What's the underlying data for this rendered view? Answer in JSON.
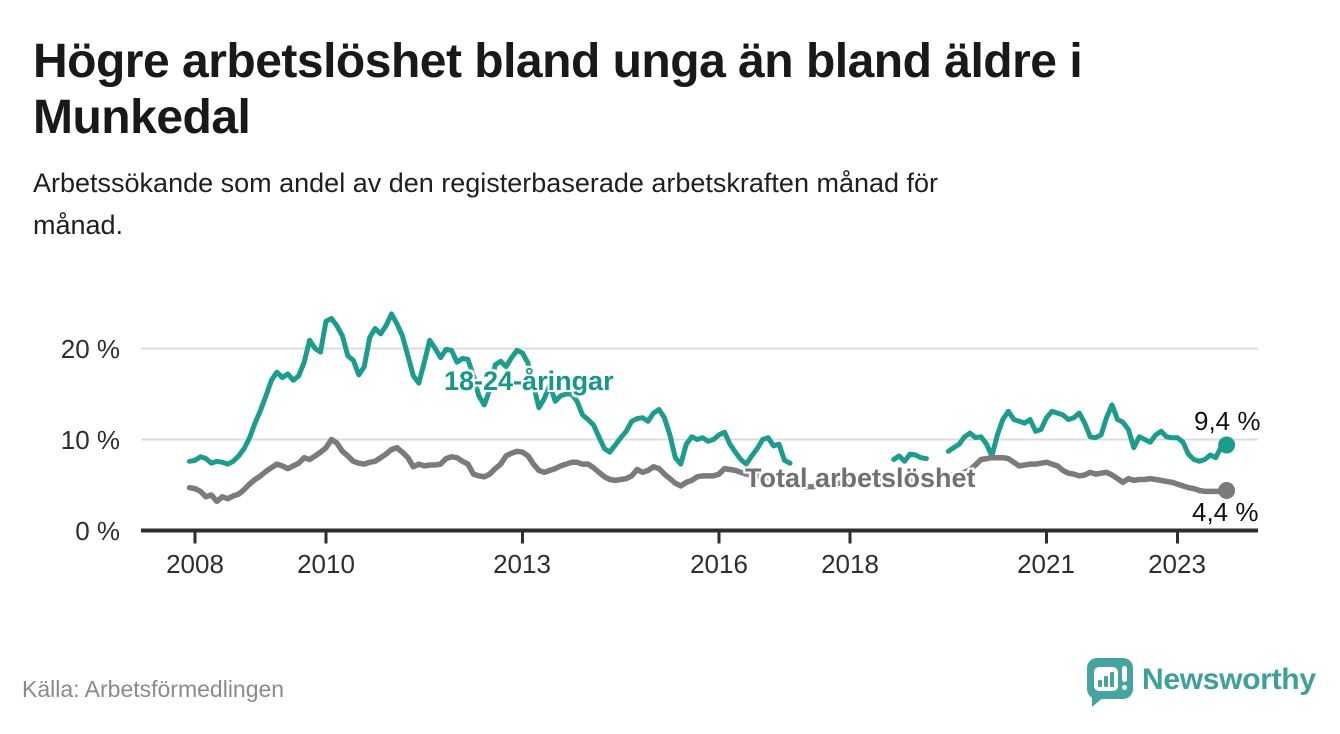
{
  "brand": {
    "name": "Newsworthy"
  },
  "source": "Källa: Arbetsförmedlingen",
  "colors": {
    "accent_teal": "#1b9c8c",
    "line_gray": "#7b7b7b",
    "brand_teal": "#46a49e",
    "axis": "#2e2e2e",
    "grid": "#dcdcdc",
    "title_text": "#191919"
  },
  "chart_data": {
    "type": "line",
    "title": "Högre arbetslöshet bland unga än bland äldre i Munkedal",
    "subtitle": "Arbetssökande som andel av den registerbaserade arbetskraften månad för månad.",
    "unit": "%",
    "frequency": "monthly",
    "start": "2007-12",
    "end": "2023-10",
    "grid": "horizontal",
    "legend": "inline-labels",
    "ylim": [
      0,
      25.5
    ],
    "x_ticks": [
      2008,
      2010,
      2013,
      2016,
      2018,
      2021,
      2023
    ],
    "x_tick_labels": [
      "2008",
      "2010",
      "2013",
      "2016",
      "2018",
      "2021",
      "2023"
    ],
    "y_ticks": [
      20,
      10,
      0
    ],
    "y_tick_labels": [
      "20 %",
      "10 %",
      "0 %"
    ],
    "series": [
      {
        "name": "18-24-åringar",
        "color": "#1b9c8c",
        "end_label": "9,4 %",
        "end_value": 9.4,
        "values": [
          7.6,
          7.7,
          8.1,
          7.9,
          7.4,
          7.6,
          7.5,
          7.3,
          7.6,
          8.2,
          9.0,
          10.2,
          11.8,
          13.2,
          14.8,
          16.5,
          17.4,
          16.8,
          17.2,
          16.5,
          17.0,
          18.5,
          20.9,
          20.0,
          19.6,
          23.0,
          23.3,
          22.5,
          21.4,
          19.2,
          18.7,
          17.1,
          18.0,
          21.2,
          22.2,
          21.6,
          22.5,
          23.8,
          22.7,
          21.4,
          19.2,
          17.0,
          16.2,
          18.5,
          20.9,
          20.0,
          19.0,
          19.9,
          19.8,
          18.5,
          18.9,
          18.8,
          17.0,
          14.8,
          13.8,
          15.5,
          18.2,
          18.6,
          18.0,
          19.0,
          19.8,
          19.5,
          18.4,
          16.0,
          13.5,
          14.5,
          16.0,
          14.2,
          14.8,
          15.0,
          15.0,
          14.2,
          12.7,
          12.2,
          11.6,
          10.3,
          9.0,
          8.6,
          9.4,
          10.2,
          10.9,
          12.0,
          12.3,
          12.4,
          12.0,
          12.9,
          13.3,
          12.4,
          10.5,
          8.0,
          7.3,
          9.5,
          10.3,
          10.0,
          10.2,
          9.8,
          10.0,
          10.5,
          10.8,
          9.5,
          8.6,
          7.8,
          7.3,
          8.2,
          9.0,
          10.0,
          10.2,
          9.3,
          9.5,
          7.7,
          7.4,
          null,
          null,
          null,
          null,
          null,
          null,
          null,
          null,
          null,
          null,
          null,
          null,
          null,
          null,
          null,
          null,
          null,
          null,
          7.8,
          8.2,
          7.6,
          8.4,
          8.3,
          8.0,
          7.9,
          null,
          null,
          null,
          8.7,
          9.1,
          9.5,
          10.3,
          10.7,
          10.2,
          10.3,
          9.5,
          8.2,
          10.5,
          12.2,
          13.1,
          12.2,
          12.0,
          11.8,
          12.2,
          10.9,
          11.1,
          12.4,
          13.1,
          12.9,
          12.7,
          12.2,
          12.4,
          12.9,
          11.8,
          10.3,
          10.2,
          10.5,
          12.4,
          13.8,
          12.2,
          11.9,
          11.1,
          9.1,
          10.3,
          10.0,
          9.7,
          10.5,
          10.9,
          10.3,
          10.2,
          10.2,
          9.7,
          8.4,
          7.8,
          7.6,
          7.8,
          8.3,
          8.0,
          9.2,
          9.4
        ]
      },
      {
        "name": "Total arbetslöshet",
        "color": "#7b7b7b",
        "end_label": "4,4 %",
        "end_value": 4.4,
        "values": [
          4.7,
          4.6,
          4.3,
          3.7,
          3.9,
          3.2,
          3.7,
          3.5,
          3.8,
          4.0,
          4.5,
          5.1,
          5.6,
          6.0,
          6.5,
          6.9,
          7.3,
          7.1,
          6.8,
          7.1,
          7.4,
          8.0,
          7.8,
          8.2,
          8.6,
          9.1,
          10.0,
          9.6,
          8.7,
          8.2,
          7.6,
          7.4,
          7.3,
          7.5,
          7.6,
          8.0,
          8.4,
          8.9,
          9.1,
          8.6,
          8.0,
          7.0,
          7.3,
          7.1,
          7.2,
          7.2,
          7.3,
          7.9,
          8.1,
          8.0,
          7.6,
          7.3,
          6.2,
          6.0,
          5.9,
          6.2,
          6.8,
          7.3,
          8.2,
          8.5,
          8.7,
          8.6,
          8.2,
          7.3,
          6.6,
          6.4,
          6.6,
          6.8,
          7.1,
          7.3,
          7.5,
          7.5,
          7.3,
          7.3,
          6.9,
          6.4,
          5.9,
          5.6,
          5.5,
          5.6,
          5.7,
          6.0,
          6.7,
          6.4,
          6.6,
          7.0,
          6.8,
          6.2,
          5.7,
          5.2,
          4.9,
          5.3,
          5.5,
          5.9,
          6.0,
          6.0,
          6.0,
          6.2,
          6.8,
          6.7,
          6.6,
          6.4,
          6.2,
          6.1,
          6.0,
          5.9,
          5.8,
          5.7,
          5.6,
          5.4,
          5.2,
          5.0,
          4.9,
          4.8,
          4.8,
          4.9,
          5.0,
          5.1,
          5.1,
          5.2,
          5.2,
          5.3,
          5.4,
          5.4,
          5.3,
          5.3,
          5.4,
          5.4,
          5.5,
          5.5,
          5.6,
          5.6,
          5.6,
          5.7,
          5.7,
          5.8,
          5.8,
          5.9,
          6.0,
          6.0,
          6.1,
          6.2,
          6.4,
          6.7,
          7.2,
          7.8,
          7.9,
          8.0,
          8.0,
          8.0,
          7.9,
          7.5,
          7.1,
          7.2,
          7.3,
          7.3,
          7.4,
          7.5,
          7.3,
          7.1,
          6.6,
          6.3,
          6.2,
          6.0,
          6.1,
          6.4,
          6.2,
          6.3,
          6.4,
          6.1,
          5.7,
          5.3,
          5.7,
          5.5,
          5.6,
          5.6,
          5.7,
          5.6,
          5.5,
          5.4,
          5.3,
          5.1,
          4.9,
          4.7,
          4.6,
          4.4,
          4.3,
          4.3,
          4.3,
          4.3,
          4.4
        ]
      }
    ]
  }
}
